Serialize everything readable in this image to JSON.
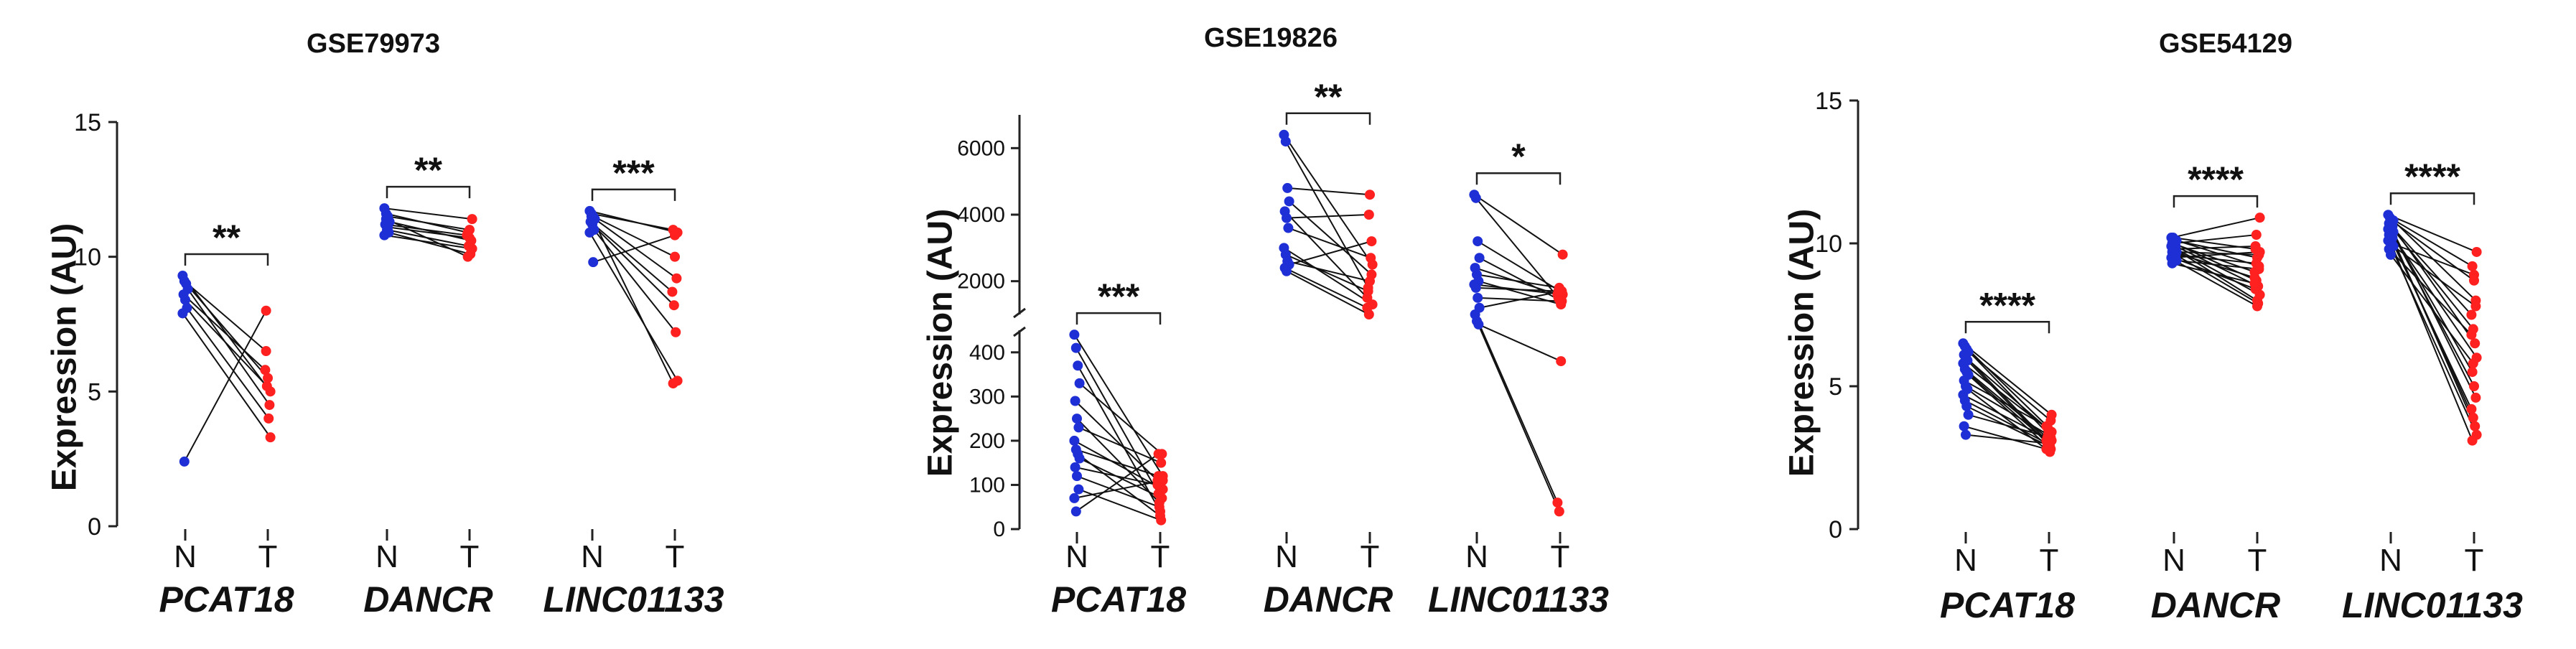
{
  "colors": {
    "normal": "#1f2fd6",
    "tumor": "#ff2020",
    "line": "#111111"
  },
  "chart_data": [
    {
      "type": "scatter",
      "title": "GSE79973",
      "ylabel": "Expression (AU)",
      "xlabel": "",
      "ylim": [
        0,
        15
      ],
      "yticks": [
        0,
        5,
        10,
        15
      ],
      "groups": [
        {
          "gene": "PCAT18",
          "labels": [
            "N",
            "T"
          ],
          "significance": "**",
          "pairs": [
            [
              9.3,
              5.0
            ],
            [
              9.1,
              6.5
            ],
            [
              9.0,
              5.5
            ],
            [
              8.8,
              4.5
            ],
            [
              8.6,
              5.8
            ],
            [
              8.4,
              5.2
            ],
            [
              8.1,
              4.0
            ],
            [
              7.9,
              3.3
            ],
            [
              2.4,
              8.0
            ]
          ]
        },
        {
          "gene": "DANCR",
          "labels": [
            "N",
            "T"
          ],
          "significance": "**",
          "pairs": [
            [
              11.8,
              11.4
            ],
            [
              11.6,
              10.9
            ],
            [
              11.5,
              11.0
            ],
            [
              11.3,
              10.6
            ],
            [
              11.2,
              10.8
            ],
            [
              11.0,
              10.4
            ],
            [
              10.9,
              10.1
            ],
            [
              10.8,
              10.3
            ],
            [
              11.4,
              10.0
            ],
            [
              11.1,
              10.7
            ]
          ]
        },
        {
          "gene": "LINC01133",
          "labels": [
            "N",
            "T"
          ],
          "significance": "***",
          "pairs": [
            [
              11.7,
              10.9
            ],
            [
              11.6,
              11.0
            ],
            [
              11.5,
              10.0
            ],
            [
              11.4,
              9.2
            ],
            [
              11.3,
              8.7
            ],
            [
              11.2,
              8.2
            ],
            [
              11.0,
              7.2
            ],
            [
              10.9,
              5.4
            ],
            [
              11.5,
              5.3
            ],
            [
              9.8,
              10.8
            ]
          ]
        }
      ]
    },
    {
      "type": "scatter",
      "title": "GSE19826",
      "ylabel": "Expression (AU)",
      "xlabel": "",
      "y_axis_break": true,
      "ylim_lower": [
        0,
        450
      ],
      "yticks_lower": [
        0,
        100,
        200,
        300,
        400
      ],
      "ylim_upper": [
        1000,
        7000
      ],
      "yticks_upper": [
        2000,
        4000,
        6000
      ],
      "groups": [
        {
          "gene": "PCAT18",
          "labels": [
            "N",
            "T"
          ],
          "significance": "***",
          "pairs": [
            [
              440,
              120
            ],
            [
              410,
              80
            ],
            [
              370,
              40
            ],
            [
              330,
              170
            ],
            [
              290,
              110
            ],
            [
              250,
              60
            ],
            [
              230,
              150
            ],
            [
              200,
              90
            ],
            [
              180,
              120
            ],
            [
              170,
              30
            ],
            [
              160,
              70
            ],
            [
              140,
              100
            ],
            [
              120,
              50
            ],
            [
              90,
              20
            ],
            [
              70,
              110
            ],
            [
              40,
              170
            ]
          ]
        },
        {
          "gene": "DANCR",
          "labels": [
            "N",
            "T"
          ],
          "significance": "**",
          "pairs": [
            [
              6400,
              2500
            ],
            [
              6200,
              1800
            ],
            [
              4800,
              4600
            ],
            [
              4400,
              2200
            ],
            [
              4100,
              1500
            ],
            [
              3900,
              4000
            ],
            [
              3600,
              2700
            ],
            [
              3000,
              1300
            ],
            [
              2800,
              1700
            ],
            [
              2600,
              2000
            ],
            [
              2500,
              3200
            ],
            [
              2400,
              1200
            ],
            [
              2300,
              1000
            ]
          ]
        },
        {
          "gene": "LINC01133",
          "labels": [
            "N",
            "T"
          ],
          "significance": "*",
          "pairs": [
            [
              4600,
              2800
            ],
            [
              4500,
              1500
            ],
            [
              3200,
              1700
            ],
            [
              2700,
              1400
            ],
            [
              2400,
              1600
            ],
            [
              2200,
              1800
            ],
            [
              2000,
              1300
            ],
            [
              1900,
              1600
            ],
            [
              1800,
              1700
            ],
            [
              1500,
              1400
            ],
            [
              1200,
              1700
            ],
            [
              1000,
              60
            ],
            [
              800,
              40
            ],
            [
              700,
              380
            ]
          ]
        }
      ]
    },
    {
      "type": "scatter",
      "title": "GSE54129",
      "ylabel": "Expression (AU)",
      "xlabel": "",
      "ylim": [
        0,
        15
      ],
      "yticks": [
        0,
        5,
        10,
        15
      ],
      "groups": [
        {
          "gene": "PCAT18",
          "labels": [
            "N",
            "T"
          ],
          "significance": "****",
          "pairs": [
            [
              6.5,
              4.0
            ],
            [
              6.4,
              3.6
            ],
            [
              6.3,
              3.3
            ],
            [
              6.2,
              3.8
            ],
            [
              6.1,
              3.1
            ],
            [
              6.0,
              3.5
            ],
            [
              5.9,
              2.9
            ],
            [
              5.8,
              3.4
            ],
            [
              5.6,
              3.2
            ],
            [
              5.5,
              3.0
            ],
            [
              5.4,
              2.8
            ],
            [
              5.2,
              3.6
            ],
            [
              5.0,
              3.3
            ],
            [
              4.9,
              2.7
            ],
            [
              4.7,
              3.1
            ],
            [
              4.5,
              3.0
            ],
            [
              4.3,
              2.9
            ],
            [
              4.0,
              3.2
            ],
            [
              3.6,
              2.8
            ],
            [
              3.3,
              3.0
            ]
          ]
        },
        {
          "gene": "DANCR",
          "labels": [
            "N",
            "T"
          ],
          "significance": "****",
          "pairs": [
            [
              10.2,
              10.9
            ],
            [
              10.2,
              9.8
            ],
            [
              10.1,
              9.5
            ],
            [
              10.1,
              9.2
            ],
            [
              10.0,
              9.0
            ],
            [
              10.0,
              8.7
            ],
            [
              9.9,
              8.5
            ],
            [
              9.9,
              8.2
            ],
            [
              9.8,
              9.9
            ],
            [
              9.8,
              8.0
            ],
            [
              9.7,
              9.6
            ],
            [
              9.7,
              8.8
            ],
            [
              9.6,
              9.3
            ],
            [
              9.6,
              7.9
            ],
            [
              9.5,
              9.7
            ],
            [
              9.5,
              8.4
            ],
            [
              9.4,
              7.8
            ],
            [
              9.4,
              9.1
            ],
            [
              9.3,
              8.6
            ],
            [
              10.0,
              10.3
            ]
          ]
        },
        {
          "gene": "LINC01133",
          "labels": [
            "N",
            "T"
          ],
          "significance": "****",
          "pairs": [
            [
              11.0,
              9.7
            ],
            [
              10.9,
              9.2
            ],
            [
              10.8,
              8.7
            ],
            [
              10.8,
              8.0
            ],
            [
              10.7,
              7.5
            ],
            [
              10.6,
              7.0
            ],
            [
              10.6,
              6.5
            ],
            [
              10.5,
              6.0
            ],
            [
              10.5,
              5.5
            ],
            [
              10.4,
              5.0
            ],
            [
              10.4,
              4.6
            ],
            [
              10.3,
              4.2
            ],
            [
              10.3,
              3.9
            ],
            [
              10.2,
              3.6
            ],
            [
              10.1,
              3.3
            ],
            [
              10.1,
              3.1
            ],
            [
              10.0,
              8.9
            ],
            [
              9.9,
              7.8
            ],
            [
              9.8,
              6.8
            ],
            [
              9.6,
              5.8
            ]
          ]
        }
      ]
    }
  ]
}
